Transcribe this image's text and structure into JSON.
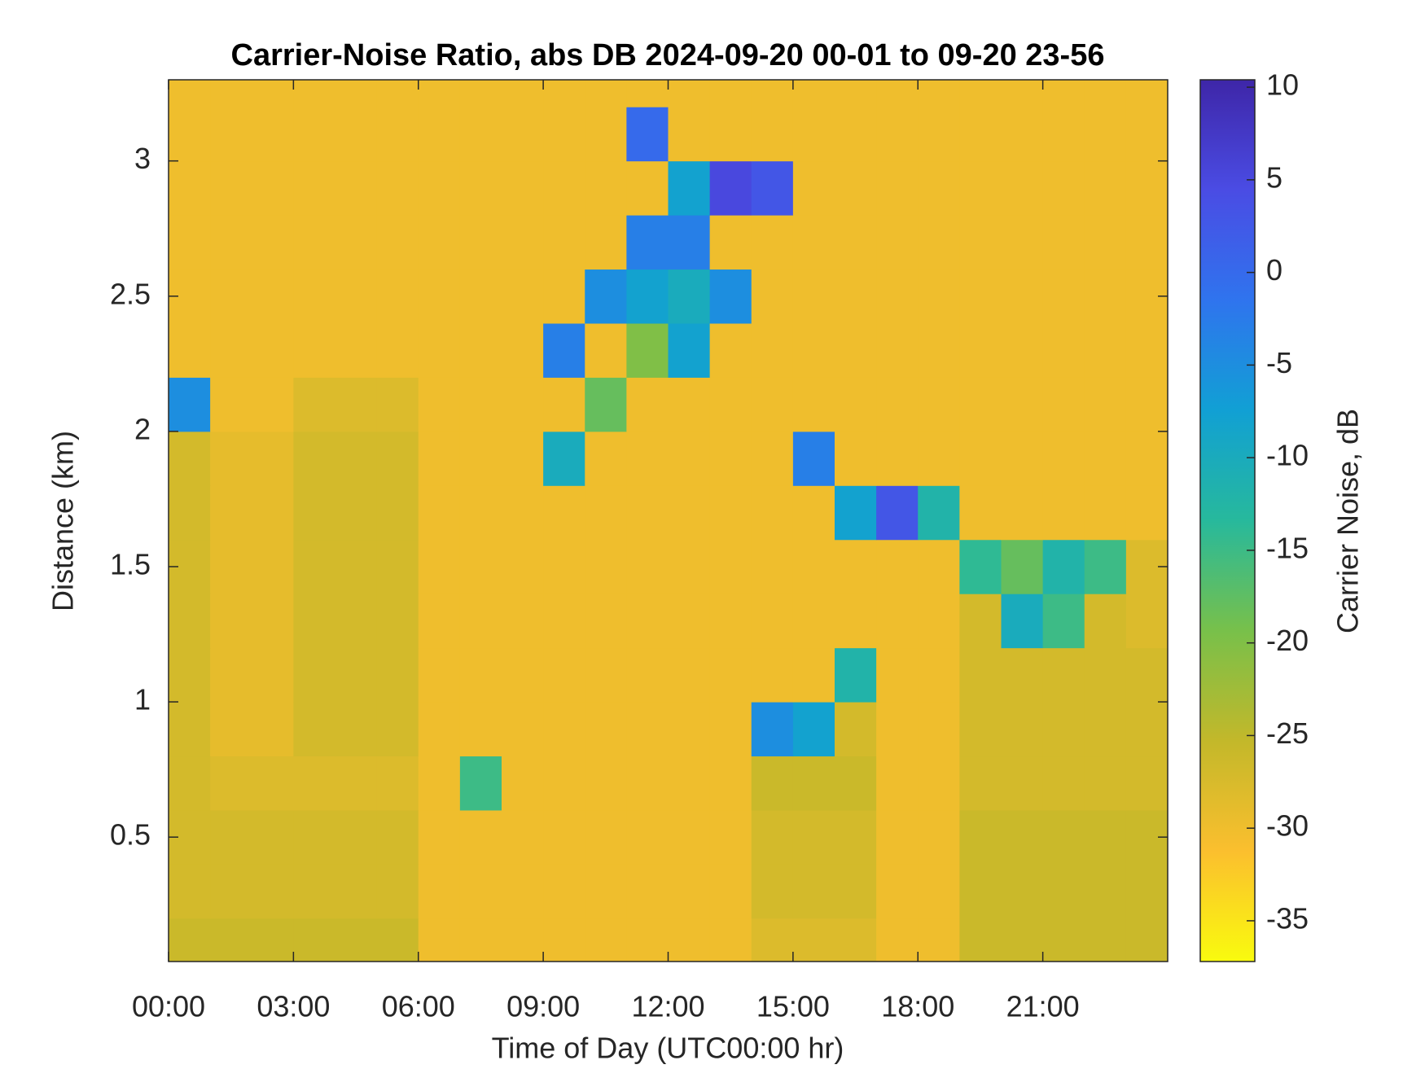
{
  "chart_data": {
    "type": "heatmap",
    "title": "Carrier-Noise Ratio, abs DB 2024-09-20 00-01 to 09-20 23-56",
    "x_label": "Time of Day (UTC00:00 hr)",
    "y_label": "Distance (km)",
    "colorbar_label": "Carrier Noise, dB",
    "x": [
      0.5,
      1.5,
      2.5,
      3.5,
      4.5,
      5.5,
      6.5,
      7.5,
      8.5,
      9.5,
      10.5,
      11.5,
      12.5,
      13.5,
      14.5,
      15.5,
      16.5,
      17.5,
      18.5,
      19.5,
      20.5,
      21.5,
      22.5,
      23.5
    ],
    "y": [
      0.1,
      0.3,
      0.5,
      0.7,
      0.9,
      1.1,
      1.3,
      1.5,
      1.7,
      1.9,
      2.1,
      2.3,
      2.5,
      2.7,
      2.9,
      3.1,
      3.3
    ],
    "z": [
      [
        -26,
        -26,
        -26,
        -26,
        -26,
        -26,
        -30,
        -30,
        -30,
        -30,
        -30,
        -30,
        -30,
        -30,
        -28,
        -28,
        -28,
        -30,
        -30,
        -26,
        -26,
        -26,
        -26,
        -26
      ],
      [
        -27,
        -27,
        -27,
        -27,
        -27,
        -27,
        -30,
        -30,
        -30,
        -30,
        -30,
        -30,
        -30,
        -30,
        -27,
        -27,
        -27,
        -30,
        -30,
        -26,
        -26,
        -26,
        -26,
        -26
      ],
      [
        -27,
        -27,
        -27,
        -27,
        -27,
        -27,
        -30,
        -30,
        -30,
        -30,
        -30,
        -30,
        -30,
        -30,
        -27,
        -27,
        -27,
        -30,
        -30,
        -26,
        -26,
        -26,
        -26,
        -26
      ],
      [
        -27,
        -28,
        -28,
        -28,
        -28,
        -28,
        -30,
        -15,
        -30,
        -30,
        -30,
        -30,
        -30,
        -30,
        -26,
        -26,
        -26,
        -30,
        -30,
        -27,
        -27,
        -27,
        -27,
        -27
      ],
      [
        -27,
        -29,
        -29,
        -27,
        -27,
        -27,
        -30,
        -30,
        -30,
        -30,
        -30,
        -30,
        -30,
        -30,
        -5,
        -8,
        -27,
        -30,
        -30,
        -27,
        -27,
        -27,
        -27,
        -27
      ],
      [
        -27,
        -29,
        -29,
        -27,
        -27,
        -27,
        -30,
        -30,
        -30,
        -30,
        -30,
        -30,
        -30,
        -30,
        -30,
        -30,
        -12,
        -30,
        -30,
        -27,
        -27,
        -27,
        -27,
        -27
      ],
      [
        -27,
        -29,
        -29,
        -27,
        -27,
        -27,
        -30,
        -30,
        -30,
        -30,
        -30,
        -30,
        -30,
        -30,
        -30,
        -30,
        -30,
        -30,
        -30,
        -27,
        -10,
        -15,
        -27,
        -28
      ],
      [
        -27,
        -29,
        -29,
        -27,
        -27,
        -27,
        -30,
        -30,
        -30,
        -30,
        -30,
        -30,
        -30,
        -30,
        -30,
        -30,
        -30,
        -30,
        -30,
        -14,
        -18,
        -12,
        -15,
        -28
      ],
      [
        -27,
        -29,
        -29,
        -27,
        -27,
        -27,
        -30,
        -30,
        -30,
        -30,
        -30,
        -30,
        -30,
        -30,
        -30,
        -30,
        -8,
        3,
        -12,
        -30,
        -30,
        -30,
        -30,
        -30
      ],
      [
        -27,
        -29,
        -29,
        -27,
        -27,
        -27,
        -30,
        -30,
        -30,
        -10,
        -30,
        -30,
        -30,
        -30,
        -30,
        -3,
        -30,
        -30,
        -30,
        -30,
        -30,
        -30,
        -30,
        -30
      ],
      [
        -5,
        -30,
        -30,
        -28,
        -28,
        -28,
        -30,
        -30,
        -30,
        -30,
        -18,
        -30,
        -30,
        -30,
        -30,
        -30,
        -30,
        -30,
        -30,
        -30,
        -30,
        -30,
        -30,
        -30
      ],
      [
        -30,
        -30,
        -30,
        -30,
        -30,
        -30,
        -30,
        -30,
        -30,
        -3,
        -30,
        -20,
        -8,
        -30,
        -30,
        -30,
        -30,
        -30,
        -30,
        -30,
        -30,
        -30,
        -30,
        -30
      ],
      [
        -30,
        -30,
        -30,
        -30,
        -30,
        -30,
        -30,
        -30,
        -30,
        -30,
        -5,
        -8,
        -10,
        -5,
        -30,
        -30,
        -30,
        -30,
        -30,
        -30,
        -30,
        -30,
        -30,
        -30
      ],
      [
        -30,
        -30,
        -30,
        -30,
        -30,
        -30,
        -30,
        -30,
        -30,
        -30,
        -30,
        -3,
        -3,
        -30,
        -30,
        -30,
        -30,
        -30,
        -30,
        -30,
        -30,
        -30,
        -30,
        -30
      ],
      [
        -30,
        -30,
        -30,
        -30,
        -30,
        -30,
        -30,
        -30,
        -30,
        -30,
        -30,
        -30,
        -8,
        5,
        3,
        -30,
        -30,
        -30,
        -30,
        -30,
        -30,
        -30,
        -30,
        -30
      ],
      [
        -30,
        -30,
        -30,
        -30,
        -30,
        -30,
        -30,
        -30,
        -30,
        -30,
        -30,
        0,
        -30,
        -30,
        -30,
        -30,
        -30,
        -30,
        -30,
        -30,
        -30,
        -30,
        -30,
        -30
      ],
      [
        -30,
        -30,
        -30,
        -30,
        -30,
        -30,
        -30,
        -30,
        -30,
        -30,
        -30,
        -30,
        -30,
        -30,
        -30,
        -30,
        -30,
        -30,
        -30,
        -30,
        -30,
        -30,
        -30,
        -30
      ]
    ],
    "xlim": [
      0,
      24
    ],
    "ylim": [
      0.04,
      3.3
    ],
    "xticks": [
      {
        "value": 0,
        "label": "00:00"
      },
      {
        "value": 3,
        "label": "03:00"
      },
      {
        "value": 6,
        "label": "06:00"
      },
      {
        "value": 9,
        "label": "09:00"
      },
      {
        "value": 12,
        "label": "12:00"
      },
      {
        "value": 15,
        "label": "15:00"
      },
      {
        "value": 18,
        "label": "18:00"
      },
      {
        "value": 21,
        "label": "21:00"
      }
    ],
    "yticks": [
      0.5,
      1,
      1.5,
      2,
      2.5,
      3
    ],
    "clim": [
      -37.2,
      10.4
    ],
    "cticks": [
      -35,
      -30,
      -25,
      -20,
      -15,
      -10,
      -5,
      0,
      5,
      10
    ],
    "colormap": [
      "#f9fb0e",
      "#fbbf2e",
      "#c3b82a",
      "#78c04a",
      "#27b99c",
      "#11a0d4",
      "#2f74ee",
      "#4a4ce4",
      "#3e26a8"
    ]
  }
}
